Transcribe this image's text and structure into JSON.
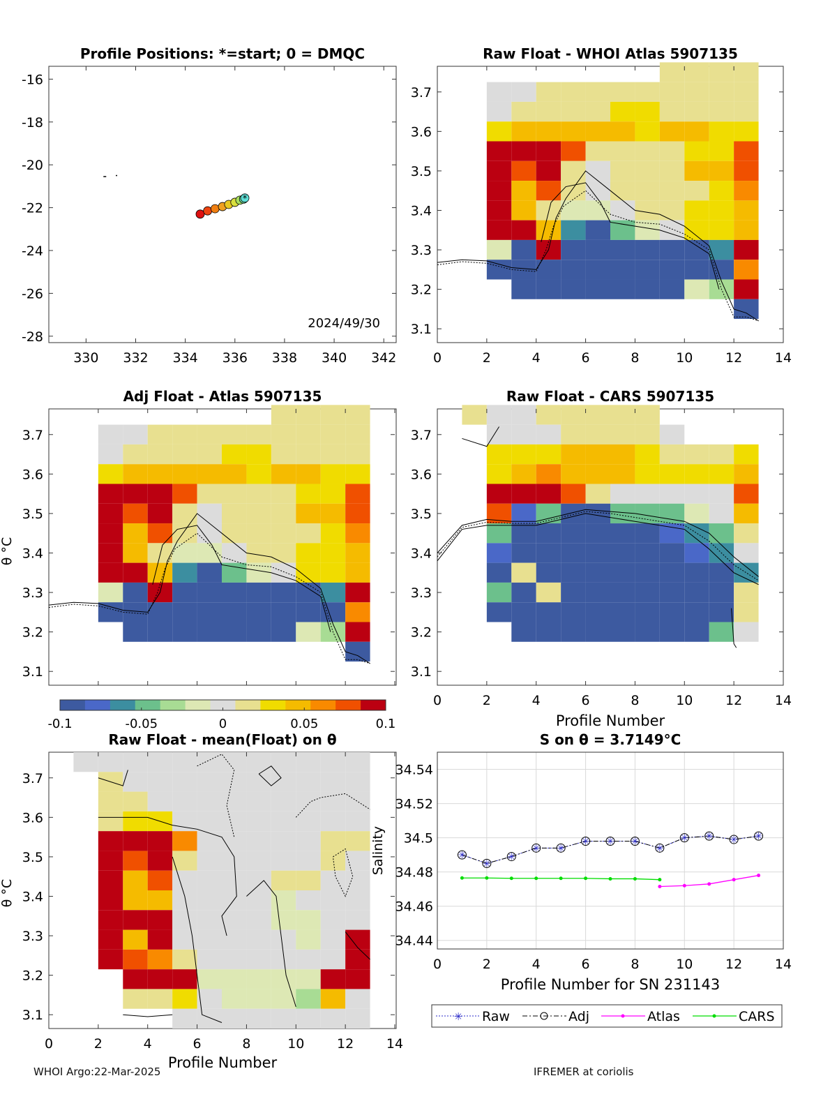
{
  "colors": {
    "grid": "#d9d9d9",
    "axis": "#333333",
    "raw_line": "#2a2ac8",
    "adj_line": "#000000",
    "atlas_line": "#ff00ff",
    "cars_line": "#00dd00",
    "map_track": [
      "#dd1111",
      "#ee4411",
      "#f07f11",
      "#f0a020",
      "#e8c820",
      "#d8e040",
      "#a8e060",
      "#70e0a0",
      "#60e0d8"
    ],
    "colormap": [
      "#3d5aa0",
      "#4a68c8",
      "#3c8ea0",
      "#6cc08c",
      "#a8dc94",
      "#dde8b4",
      "#dcdcdc",
      "#e8e090",
      "#f0dc00",
      "#f5bb00",
      "#f98a00",
      "#f05000",
      "#bb0011"
    ]
  },
  "map": {
    "title": "Profile Positions: *=start; 0 = DMQC",
    "xticks": [
      "330",
      "332",
      "334",
      "336",
      "338",
      "340",
      "342"
    ],
    "yticks": [
      "-16",
      "-18",
      "-20",
      "-22",
      "-24",
      "-26",
      "-28"
    ],
    "xlim": [
      328.5,
      342.5
    ],
    "ylim": [
      -28.3,
      -15.4
    ],
    "date_label": "2024/49/30",
    "track": [
      [
        334.6,
        -22.3
      ],
      [
        334.9,
        -22.15
      ],
      [
        335.2,
        -22.05
      ],
      [
        335.5,
        -21.95
      ],
      [
        335.75,
        -21.85
      ],
      [
        336.0,
        -21.75
      ],
      [
        336.2,
        -21.65
      ],
      [
        336.35,
        -21.6
      ],
      [
        336.4,
        -21.55
      ]
    ],
    "coast": [
      [
        330.7,
        -20.55
      ],
      [
        331.2,
        -20.5
      ]
    ]
  },
  "panels": {
    "p1": {
      "title": "Raw Float - WHOI Atlas  5907135",
      "xticks": [
        "0",
        "2",
        "4",
        "6",
        "8",
        "10",
        "12",
        "14"
      ],
      "yticks": [
        "3.7",
        "3.6",
        "3.5",
        "3.4",
        "3.3",
        "3.2",
        "3.1"
      ]
    },
    "p2": {
      "title": "Adj Float - Atlas  5907135",
      "xticks": [],
      "yticks": [
        "3.7",
        "3.6",
        "3.5",
        "3.4",
        "3.3",
        "3.2",
        "3.1"
      ],
      "ylabel": "θ °C"
    },
    "p3": {
      "title": "Raw Float - CARS  5907135",
      "xticks": [
        "0",
        "2",
        "4",
        "6",
        "8",
        "10",
        "12",
        "14"
      ],
      "yticks": [
        "3.7",
        "3.6",
        "3.5",
        "3.4",
        "3.3",
        "3.2",
        "3.1"
      ],
      "xlabel": "Profile Number"
    },
    "p4": {
      "title": "Raw Float - mean(Float) on θ",
      "xticks": [
        "0",
        "2",
        "4",
        "6",
        "8",
        "10",
        "12",
        "14"
      ],
      "yticks": [
        "3.7",
        "3.6",
        "3.5",
        "3.4",
        "3.3",
        "3.2",
        "3.1"
      ],
      "xlabel": "Profile Number",
      "ylabel": "θ °C"
    }
  },
  "colorbar": {
    "ticks": [
      "-0.1",
      "-0.05",
      "0",
      "0.05",
      "0.1"
    ]
  },
  "chart_data": [
    {
      "type": "scatter",
      "title": "Profile Positions: *=start; 0 = DMQC",
      "x": [
        334.6,
        334.9,
        335.2,
        335.5,
        335.75,
        336.0,
        336.2,
        336.35,
        336.4
      ],
      "y": [
        -22.3,
        -22.15,
        -22.05,
        -21.95,
        -21.85,
        -21.75,
        -21.65,
        -21.6,
        -21.55
      ],
      "xlim": [
        328.5,
        342.5
      ],
      "ylim": [
        -28.3,
        -15.4
      ]
    },
    {
      "type": "heatmap",
      "title": "Raw Float - WHOI Atlas  5907135",
      "xlim": [
        0,
        14
      ],
      "ylim": [
        3.065,
        3.765
      ],
      "clim": [
        -0.1,
        0.1
      ],
      "grid_values": [
        [
          null,
          null,
          null,
          null,
          null,
          null,
          null,
          0.02,
          0.02,
          0.02,
          0.02
        ],
        [
          0,
          0,
          0.01,
          0.01,
          0.01,
          0.02,
          0.02,
          0.02,
          0.02,
          0.02,
          0.02
        ],
        [
          0,
          0.01,
          0.01,
          0.02,
          0.02,
          0.03,
          0.03,
          0.02,
          0.02,
          0.02,
          0.02
        ],
        [
          0.03,
          0.05,
          0.05,
          0.04,
          0.04,
          0.04,
          0.03,
          0.04,
          0.04,
          0.03,
          0.03
        ],
        [
          0.1,
          0.1,
          0.1,
          0.07,
          0.01,
          0.02,
          0.02,
          0.02,
          0.03,
          0.03,
          0.07
        ],
        [
          0.1,
          0.07,
          0.1,
          0.02,
          0,
          0.02,
          0.02,
          0.02,
          0.04,
          0.04,
          0.07
        ],
        [
          0.1,
          0.04,
          0.07,
          0.01,
          0,
          0.01,
          0.02,
          0.01,
          0.02,
          0.03,
          0.06
        ],
        [
          0.1,
          0.04,
          0.01,
          -0.02,
          -0.02,
          0,
          0.02,
          0.01,
          0.03,
          0.03,
          0.04
        ],
        [
          0.1,
          0.1,
          0.04,
          -0.06,
          -0.1,
          -0.04,
          -0.02,
          0,
          0.03,
          0.03,
          0.04
        ],
        [
          -0.02,
          -0.1,
          0.1,
          -0.1,
          -0.1,
          -0.1,
          -0.1,
          -0.1,
          -0.1,
          -0.06,
          0.1
        ],
        [
          -0.09,
          -0.1,
          -0.1,
          -0.1,
          -0.1,
          -0.1,
          -0.1,
          -0.1,
          -0.1,
          -0.09,
          0.06
        ],
        [
          null,
          -0.09,
          -0.1,
          -0.1,
          -0.1,
          -0.1,
          -0.1,
          -0.1,
          -0.01,
          -0.03,
          0.1
        ],
        [
          null,
          null,
          null,
          null,
          null,
          null,
          null,
          null,
          null,
          null,
          -0.1
        ]
      ]
    },
    {
      "type": "heatmap",
      "title": "Raw Float - CARS  5907135",
      "xlim": [
        0,
        14
      ],
      "ylim": [
        3.065,
        3.765
      ],
      "clim": [
        -0.1,
        0.1
      ]
    },
    {
      "type": "line",
      "title": "S on θ = 3.7149°C",
      "xlabel": "Profile Number for SN 231143",
      "ylabel": "Salinity",
      "xlim": [
        0,
        14
      ],
      "ylim": [
        34.435,
        34.55
      ],
      "xticks": [
        "0",
        "2",
        "4",
        "6",
        "8",
        "10",
        "12",
        "14"
      ],
      "yticks": [
        "34.54",
        "34.52",
        "34.5",
        "34.48",
        "34.46",
        "34.44"
      ],
      "legend_position": "bottom",
      "series": [
        {
          "name": "Raw",
          "x": [
            1,
            2,
            3,
            4,
            5,
            6,
            7,
            8,
            9,
            10,
            11,
            12,
            13
          ],
          "values": [
            34.49,
            34.485,
            34.489,
            34.494,
            34.494,
            34.498,
            34.498,
            34.498,
            34.494,
            34.5,
            34.501,
            34.499,
            34.501
          ]
        },
        {
          "name": "Adj",
          "x": [
            1,
            2,
            3,
            4,
            5,
            6,
            7,
            8,
            9,
            10,
            11,
            12,
            13
          ],
          "values": [
            34.49,
            34.485,
            34.489,
            34.494,
            34.494,
            34.498,
            34.498,
            34.498,
            34.494,
            34.5,
            34.501,
            34.499,
            34.501
          ]
        },
        {
          "name": "Atlas",
          "x": [
            9,
            10,
            11,
            12,
            13
          ],
          "values": [
            34.4715,
            34.472,
            34.473,
            34.4755,
            34.478
          ]
        },
        {
          "name": "CARS",
          "x": [
            1,
            2,
            3,
            4,
            5,
            6,
            7,
            8,
            9
          ],
          "values": [
            34.4765,
            34.4765,
            34.4763,
            34.4763,
            34.4763,
            34.4763,
            34.476,
            34.476,
            34.4755
          ]
        }
      ]
    }
  ],
  "legend": {
    "raw": "Raw",
    "adj": "Adj",
    "atlas": "Atlas",
    "cars": "CARS"
  },
  "footer": {
    "left": "WHOI Argo:22-Mar-2025",
    "right": "IFREMER at coriolis"
  }
}
